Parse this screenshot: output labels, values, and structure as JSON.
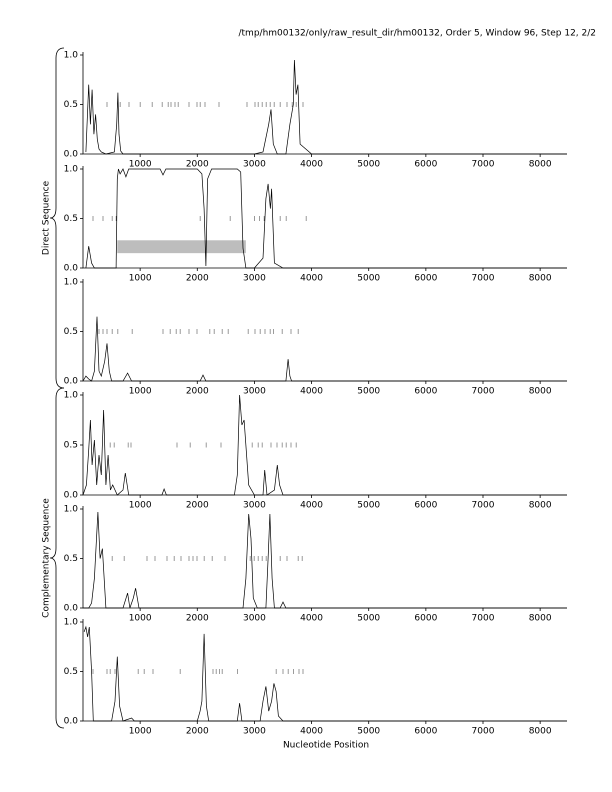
{
  "title": "/tmp/hm00132/only/raw_result_dir/hm00132, Order 5, Window 96, Step 12, 2/2",
  "direct_label": "Direct Sequence",
  "complementary_label": "Complementary Sequence",
  "xlabel": "Nucleotide Position",
  "chart_data": [
    {
      "type": "line",
      "color": "#000000",
      "x": [
        50,
        100,
        130,
        160,
        190,
        220,
        250,
        280,
        320,
        400,
        550,
        590,
        610,
        630,
        660,
        700,
        1000,
        1500,
        2000,
        2500,
        3000,
        3150,
        3250,
        3290,
        3330,
        3400,
        3550,
        3620,
        3680,
        3700,
        3730,
        3760,
        3800,
        4000,
        5000,
        6000,
        7000,
        8000,
        8470
      ],
      "values": [
        0.02,
        0.7,
        0.3,
        0.65,
        0.2,
        0.4,
        0.15,
        0.05,
        0.02,
        0,
        0.02,
        0.3,
        0.62,
        0.2,
        0.03,
        0,
        0,
        0,
        0,
        0,
        0,
        0.02,
        0.3,
        0.45,
        0.1,
        0,
        0,
        0.3,
        0.5,
        0.95,
        0.6,
        0.7,
        0.1,
        0,
        0,
        0,
        0,
        0,
        0
      ],
      "marks": [
        420,
        650,
        805,
        1000,
        1210,
        1385,
        1490,
        1540,
        1610,
        1665,
        1855,
        1995,
        2050,
        2135,
        2380,
        2870,
        3010,
        3065,
        3135,
        3205,
        3275,
        3345,
        3450,
        3570,
        3660,
        3730,
        3850
      ],
      "xlim": [
        0,
        8470
      ],
      "ylim": [
        0,
        1
      ],
      "xticks": [
        1000,
        2000,
        3000,
        4000,
        5000,
        6000,
        7000,
        8000
      ],
      "yticks": [
        {
          "value": 0,
          "label": "0.0"
        },
        {
          "value": 0.5,
          "label": "0.5"
        },
        {
          "value": 1,
          "label": "1.0"
        }
      ]
    },
    {
      "type": "line",
      "color": "#000000",
      "x": [
        50,
        100,
        150,
        200,
        400,
        580,
        600,
        620,
        650,
        700,
        750,
        800,
        1000,
        1350,
        1400,
        1450,
        2000,
        2080,
        2120,
        2150,
        2180,
        2250,
        2700,
        2760,
        2800,
        2850,
        3000,
        3150,
        3200,
        3240,
        3280,
        3300,
        3350,
        3500,
        4000,
        5000,
        8470
      ],
      "values": [
        0,
        0.22,
        0.05,
        0,
        0,
        0,
        0.9,
        1,
        0.95,
        1,
        0.92,
        1,
        1,
        1,
        0.94,
        1,
        1,
        0.95,
        0.6,
        0.02,
        0.9,
        1,
        1,
        0.97,
        0.2,
        0,
        0,
        0.1,
        0.7,
        0.85,
        0.6,
        0.8,
        0.05,
        0,
        0,
        0,
        0
      ],
      "marks": [
        175,
        350,
        510,
        580,
        2050,
        2575,
        3000,
        3085,
        3170,
        3450,
        3555,
        3905
      ],
      "regions": [
        [
          600,
          2850
        ]
      ],
      "region_color": "#bdbdbd",
      "xlim": [
        0,
        8470
      ],
      "ylim": [
        0,
        1
      ],
      "xticks": [
        1000,
        2000,
        3000,
        4000,
        5000,
        6000,
        7000,
        8000
      ],
      "yticks": [
        {
          "value": 0,
          "label": "0.0"
        },
        {
          "value": 0.5,
          "label": "0.5"
        },
        {
          "value": 1,
          "label": "1.0"
        }
      ]
    },
    {
      "type": "line",
      "color": "#000000",
      "x": [
        0,
        50,
        100,
        150,
        200,
        245,
        280,
        320,
        380,
        420,
        460,
        500,
        700,
        780,
        850,
        1000,
        2050,
        2100,
        2150,
        3000,
        3550,
        3590,
        3620,
        3650,
        4000,
        8470
      ],
      "values": [
        0,
        0.05,
        0.02,
        0,
        0.1,
        0.65,
        0.1,
        0.05,
        0.2,
        0.38,
        0.1,
        0,
        0,
        0.08,
        0,
        0,
        0,
        0.06,
        0,
        0,
        0,
        0.22,
        0.05,
        0,
        0,
        0
      ],
      "marks": [
        280,
        350,
        420,
        510,
        610,
        860,
        1400,
        1525,
        1630,
        1700,
        1855,
        1995,
        2220,
        2295,
        2435,
        2540,
        2890,
        3010,
        3100,
        3185,
        3275,
        3330,
        3485,
        3640,
        3765
      ],
      "xlim": [
        0,
        8470
      ],
      "ylim": [
        0,
        1
      ],
      "xticks": [
        1000,
        2000,
        3000,
        4000,
        5000,
        6000,
        7000,
        8000
      ],
      "yticks": [
        {
          "value": 0,
          "label": "0.0"
        },
        {
          "value": 0.5,
          "label": "0.5"
        },
        {
          "value": 1,
          "label": "1.0"
        }
      ]
    },
    {
      "type": "line",
      "color": "#000000",
      "x": [
        0,
        60,
        100,
        130,
        160,
        200,
        240,
        280,
        320,
        360,
        400,
        440,
        480,
        520,
        600,
        700,
        740,
        800,
        1000,
        1380,
        1420,
        1460,
        2000,
        2650,
        2700,
        2740,
        2780,
        2820,
        2900,
        3000,
        3150,
        3180,
        3220,
        3350,
        3400,
        3440,
        3500,
        4000,
        8470
      ],
      "values": [
        0,
        0.1,
        0.45,
        0.75,
        0.3,
        0.55,
        0.1,
        0.4,
        0.2,
        0.85,
        0.1,
        0.4,
        0.05,
        0.1,
        0,
        0.05,
        0.22,
        0,
        0,
        0,
        0.06,
        0,
        0,
        0,
        0.2,
        1,
        0.7,
        0.75,
        0.1,
        0,
        0,
        0.25,
        0,
        0.05,
        0.3,
        0.1,
        0,
        0,
        0
      ],
      "marks": [
        475,
        545,
        790,
        840,
        1645,
        1875,
        2155,
        2415,
        2960,
        3065,
        3135,
        3290,
        3395,
        3485,
        3555,
        3640,
        3730
      ],
      "xlim": [
        0,
        8470
      ],
      "ylim": [
        0,
        1
      ],
      "xticks": [
        1000,
        2000,
        3000,
        4000,
        5000,
        6000,
        7000,
        8000
      ],
      "yticks": [
        {
          "value": 0,
          "label": "0.0"
        },
        {
          "value": 0.5,
          "label": "0.5"
        },
        {
          "value": 1,
          "label": "1.0"
        }
      ]
    },
    {
      "type": "line",
      "color": "#000000",
      "x": [
        0,
        100,
        150,
        200,
        260,
        300,
        340,
        400,
        700,
        780,
        820,
        880,
        920,
        980,
        2000,
        2800,
        2850,
        2900,
        2940,
        2980,
        3050,
        3200,
        3240,
        3270,
        3310,
        3350,
        3450,
        3500,
        3550,
        4000,
        8470
      ],
      "values": [
        0,
        0,
        0.05,
        0.3,
        0.97,
        0.5,
        0.6,
        0,
        0,
        0.15,
        0,
        0.1,
        0.2,
        0,
        0,
        0,
        0.3,
        0.95,
        0.7,
        0.1,
        0,
        0,
        0.5,
        0.95,
        0.3,
        0,
        0,
        0.06,
        0,
        0,
        0
      ],
      "marks": [
        510,
        720,
        1120,
        1260,
        1470,
        1595,
        1715,
        1855,
        1925,
        1995,
        2120,
        2260,
        2485,
        2925,
        2995,
        3065,
        3135,
        3205,
        3450,
        3570,
        3765,
        3835
      ],
      "xlim": [
        0,
        8470
      ],
      "ylim": [
        0,
        1
      ],
      "xticks": [
        1000,
        2000,
        3000,
        4000,
        5000,
        6000,
        7000,
        8000
      ],
      "yticks": [
        {
          "value": 0,
          "label": "0.0"
        },
        {
          "value": 0.5,
          "label": "0.5"
        },
        {
          "value": 1,
          "label": "1.0"
        }
      ]
    },
    {
      "type": "line",
      "color": "#000000",
      "x": [
        20,
        50,
        80,
        110,
        150,
        180,
        500,
        560,
        600,
        640,
        700,
        850,
        900,
        2000,
        2050,
        2080,
        2120,
        2160,
        2200,
        2700,
        2740,
        2780,
        3100,
        3150,
        3200,
        3250,
        3300,
        3340,
        3380,
        3420,
        3500,
        4000,
        8470
      ],
      "values": [
        0.9,
        0.95,
        0.85,
        0.95,
        0.5,
        0,
        0,
        0.2,
        0.65,
        0.15,
        0,
        0.03,
        0,
        0,
        0.1,
        0.2,
        0.88,
        0.15,
        0,
        0,
        0.18,
        0,
        0,
        0.2,
        0.35,
        0.1,
        0.2,
        0.38,
        0.3,
        0.05,
        0,
        0,
        0
      ],
      "marks": [
        175,
        420,
        475,
        560,
        965,
        1070,
        1225,
        1700,
        2275,
        2330,
        2385,
        2435,
        2700,
        3380,
        3500,
        3590,
        3680,
        3780,
        3850
      ],
      "xlim": [
        0,
        8470
      ],
      "ylim": [
        0,
        1
      ],
      "xticks": [
        1000,
        2000,
        3000,
        4000,
        5000,
        6000,
        7000,
        8000
      ],
      "yticks": [
        {
          "value": 0,
          "label": "0.0"
        },
        {
          "value": 0.5,
          "label": "0.5"
        },
        {
          "value": 1,
          "label": "1.0"
        }
      ]
    }
  ]
}
